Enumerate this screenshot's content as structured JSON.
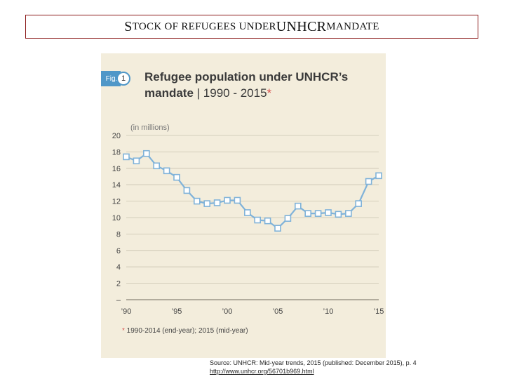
{
  "slide": {
    "title_s": "S",
    "title_1": "TOCK OF REFUGEES UNDER",
    "title_2": "UNHCR",
    "title_3": " MANDATE"
  },
  "figure": {
    "fig_label": "Fig.",
    "fig_number": "1",
    "title_line1": "Refugee population under UNHCR’s",
    "title_line2_bold": "mandate",
    "title_line2_rest": " | 1990 - 2015",
    "title_star": "*",
    "footnote_star": "*",
    "footnote": " 1990-2014 (end-year); 2015 (mid-year)"
  },
  "source": {
    "text": "Source: UNHCR: Mid-year trends, 2015 (published: December 2015), p. 4",
    "link": "http://www.unhcr.org/56701b969.html"
  },
  "colors": {
    "line": "#7fb2d9",
    "marker_fill": "#ffffff",
    "grid": "#c9c3b0",
    "panel": "#f3eddc",
    "accent": "#4f97c8",
    "star": "#d9534f"
  },
  "chart_data": {
    "type": "line",
    "title": "Refugee population under UNHCR’s mandate | 1990 - 2015*",
    "ylabel": "(in millions)",
    "xlabel": "",
    "ylim": [
      0,
      20
    ],
    "yticks": [
      "–",
      "2",
      "4",
      "6",
      "8",
      "10",
      "12",
      "14",
      "16",
      "18",
      "20"
    ],
    "xticks": [
      {
        "year": 1990,
        "label": "’90"
      },
      {
        "year": 1995,
        "label": "’95"
      },
      {
        "year": 2000,
        "label": "’00"
      },
      {
        "year": 2005,
        "label": "’05"
      },
      {
        "year": 2010,
        "label": "’10"
      },
      {
        "year": 2015,
        "label": "’15"
      }
    ],
    "grid": true,
    "x": [
      1990,
      1991,
      1992,
      1993,
      1994,
      1995,
      1996,
      1997,
      1998,
      1999,
      2000,
      2001,
      2002,
      2003,
      2004,
      2005,
      2006,
      2007,
      2008,
      2009,
      2010,
      2011,
      2012,
      2013,
      2014,
      2015
    ],
    "values": [
      17.4,
      16.9,
      17.8,
      16.3,
      15.7,
      14.9,
      13.3,
      12.0,
      11.7,
      11.8,
      12.1,
      12.1,
      10.6,
      9.7,
      9.6,
      8.7,
      9.9,
      11.4,
      10.5,
      10.5,
      10.6,
      10.4,
      10.5,
      11.7,
      14.4,
      15.1
    ]
  }
}
